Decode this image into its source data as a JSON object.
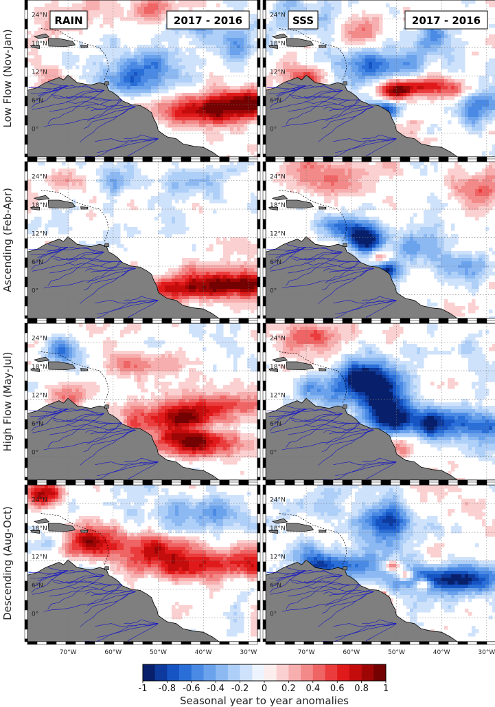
{
  "chart_data": {
    "type": "heatmap",
    "title": "",
    "panel_headers": [
      {
        "left": "RAIN",
        "right": "2017 - 2016"
      },
      {
        "left": "SSS",
        "right": "2017 - 2016"
      }
    ],
    "columns": [
      "RAIN",
      "SSS"
    ],
    "rows": [
      {
        "label": "Low Flow (Nov-Jan)"
      },
      {
        "label": "Ascending (Feb-Apr)"
      },
      {
        "label": "High Flow (May-Jul)"
      },
      {
        "label": "Descending (Aug-Oct)"
      }
    ],
    "lon_range": [
      -79,
      -28
    ],
    "lat_range": [
      -5,
      28
    ],
    "lon_ticks": [
      "70°W",
      "60°W",
      "50°W",
      "40°W",
      "30°W"
    ],
    "lon_tick_values": [
      -70,
      -60,
      -50,
      -40,
      -30
    ],
    "lat_ticks": [
      "0°",
      "6°N",
      "12°N",
      "18°N",
      "24°N"
    ],
    "lat_tick_values": [
      0,
      6,
      12,
      18,
      24
    ],
    "grid": true,
    "colorbar": {
      "ticks": [
        "-1",
        "-0.8",
        "-0.6",
        "-0.4",
        "-0.2",
        "0",
        "0.2",
        "0.4",
        "0.6",
        "0.8",
        "1"
      ],
      "range": [
        -1,
        1
      ],
      "bins": 20,
      "label": "Seasonal year to year anomalies",
      "colors": [
        "#08206b",
        "#0d3a9c",
        "#1654c4",
        "#2a6fd8",
        "#4a8ae4",
        "#6ba2ec",
        "#8db9f2",
        "#aecff7",
        "#cfe2fb",
        "#eef4fe",
        "#fdeeee",
        "#fbd0d0",
        "#f7aeae",
        "#f38a8a",
        "#ef6464",
        "#ea3c3c",
        "#e01a1a",
        "#c40c0c",
        "#9e0606",
        "#740202"
      ]
    },
    "land_color": "#7f7f7f",
    "river_color": "#1414c8"
  }
}
